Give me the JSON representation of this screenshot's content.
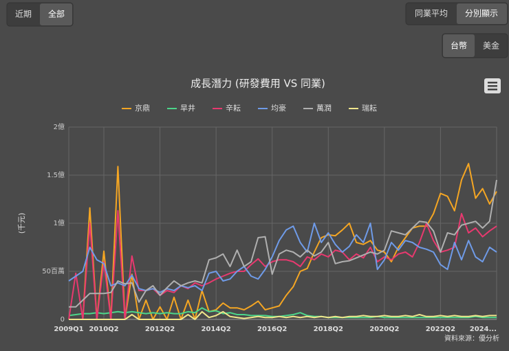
{
  "ui": {
    "range_buttons": [
      "近期",
      "全部"
    ],
    "mode_buttons": [
      "同業平均",
      "分別顯示"
    ],
    "currency_buttons": [
      "台幣",
      "美金"
    ],
    "source": "資料來源：優分析"
  },
  "chart_data": {
    "type": "line",
    "title": "成長潛力 (研發費用 VS 同業)",
    "y_label": "(千元)",
    "categories": [
      "2009Q1",
      null,
      null,
      null,
      null,
      "2010Q2",
      null,
      null,
      null,
      null,
      null,
      null,
      null,
      "2012Q2",
      null,
      null,
      null,
      null,
      null,
      null,
      null,
      "2014Q2",
      null,
      null,
      null,
      null,
      null,
      null,
      null,
      "2016Q2",
      null,
      null,
      null,
      null,
      null,
      null,
      null,
      "2018Q2",
      null,
      null,
      null,
      null,
      null,
      null,
      null,
      "2020Q2",
      null,
      null,
      null,
      null,
      null,
      null,
      null,
      "2022Q2",
      null,
      null,
      null,
      null,
      null,
      null,
      null,
      "2024..."
    ],
    "ylim": [
      0,
      200000
    ],
    "yticks": [
      0,
      {
        "value": 50000,
        "label": "50百萬"
      },
      {
        "value": 100000,
        "label": "1億"
      },
      {
        "value": 150000,
        "label": "1.5億"
      },
      {
        "value": 200000,
        "label": "2億"
      }
    ],
    "grid": true,
    "series": [
      {
        "name": "京鼎",
        "color": "#f5a623",
        "values": [
          0,
          0,
          0,
          116000,
          0,
          71000,
          0,
          159000,
          0,
          47000,
          0,
          20000,
          0,
          13000,
          0,
          23000,
          0,
          20000,
          0,
          30000,
          8000,
          10000,
          17000,
          12000,
          12000,
          10000,
          14000,
          19000,
          10000,
          12000,
          14000,
          25000,
          34000,
          50000,
          53000,
          70000,
          85000,
          88000,
          87000,
          93000,
          100000,
          80000,
          78000,
          82000,
          72000,
          70000,
          60000,
          75000,
          85000,
          95000,
          97000,
          97000,
          110000,
          131000,
          128000,
          113000,
          145000,
          162000,
          126000,
          136000,
          120000,
          133000
        ]
      },
      {
        "name": "旱井",
        "color": "#4cd68a",
        "values": [
          4000,
          5000,
          6000,
          6000,
          7000,
          6000,
          7000,
          8000,
          7000,
          8000,
          7000,
          6000,
          7000,
          6000,
          7000,
          6000,
          6000,
          8000,
          7000,
          12000,
          8000,
          9000,
          6000,
          7000,
          5000,
          5000,
          4000,
          4000,
          4000,
          3000,
          3000,
          4000,
          5000,
          7000,
          4000,
          3000,
          3000,
          2000,
          2000,
          2000,
          2000,
          2000,
          2000,
          2000,
          3000,
          2000,
          2000,
          2000,
          2000,
          2000,
          2000,
          2000,
          2000,
          2000,
          2000,
          2000,
          2000,
          2000,
          3000,
          2000,
          2000,
          2000
        ]
      },
      {
        "name": "辛耘",
        "color": "#e8396f",
        "values": [
          0,
          48000,
          0,
          100000,
          0,
          60000,
          0,
          113000,
          0,
          66000,
          30000,
          30000,
          32000,
          25000,
          30000,
          28000,
          35000,
          32000,
          38000,
          35000,
          38000,
          42000,
          45000,
          48000,
          50000,
          50000,
          57000,
          63000,
          55000,
          60000,
          62000,
          62000,
          60000,
          55000,
          65000,
          62000,
          68000,
          65000,
          72000,
          70000,
          62000,
          68000,
          64000,
          75000,
          60000,
          65000,
          62000,
          68000,
          70000,
          65000,
          80000,
          100000,
          82000,
          70000,
          72000,
          75000,
          110000,
          90000,
          95000,
          86000,
          92000,
          97000
        ]
      },
      {
        "name": "均豪",
        "color": "#6f9be8",
        "values": [
          40000,
          45000,
          50000,
          75000,
          62000,
          58000,
          35000,
          38000,
          35000,
          46000,
          32000,
          30000,
          32000,
          28000,
          32000,
          30000,
          35000,
          33000,
          35000,
          30000,
          48000,
          50000,
          40000,
          42000,
          50000,
          55000,
          45000,
          42000,
          52000,
          65000,
          82000,
          93000,
          97000,
          80000,
          70000,
          100000,
          80000,
          90000,
          78000,
          70000,
          76000,
          88000,
          80000,
          100000,
          52000,
          62000,
          80000,
          72000,
          82000,
          80000,
          75000,
          73000,
          70000,
          57000,
          52000,
          80000,
          62000,
          82000,
          65000,
          60000,
          75000,
          70000
        ]
      },
      {
        "name": "萬潤",
        "color": "#b0b0b0",
        "values": [
          13000,
          13000,
          20000,
          27000,
          27000,
          27000,
          28000,
          40000,
          37000,
          38000,
          18000,
          30000,
          35000,
          25000,
          33000,
          40000,
          35000,
          38000,
          40000,
          38000,
          62000,
          64000,
          68000,
          55000,
          72000,
          55000,
          60000,
          85000,
          86000,
          47000,
          68000,
          72000,
          70000,
          65000,
          72000,
          66000,
          70000,
          80000,
          58000,
          60000,
          61000,
          64000,
          67000,
          70000,
          68000,
          72000,
          92000,
          90000,
          88000,
          95000,
          102000,
          101000,
          92000,
          70000,
          90000,
          88000,
          98000,
          100000,
          102000,
          95000,
          102000,
          145000
        ]
      },
      {
        "name": "瑞耘",
        "color": "#f0e68c",
        "values": [
          0,
          0,
          0,
          0,
          0,
          0,
          0,
          0,
          0,
          5000,
          0,
          0,
          0,
          0,
          0,
          0,
          0,
          5000,
          0,
          8000,
          2000,
          4000,
          8000,
          3000,
          2000,
          1000,
          2000,
          3000,
          2000,
          2000,
          3000,
          2000,
          3000,
          2000,
          3000,
          2000,
          3000,
          2000,
          3000,
          2000,
          3000,
          3000,
          4000,
          3000,
          3000,
          4000,
          3000,
          3000,
          4000,
          3000,
          5000,
          3000,
          3000,
          4000,
          3000,
          4000,
          3000,
          3000,
          4000,
          3000,
          4000,
          4000
        ]
      }
    ]
  }
}
